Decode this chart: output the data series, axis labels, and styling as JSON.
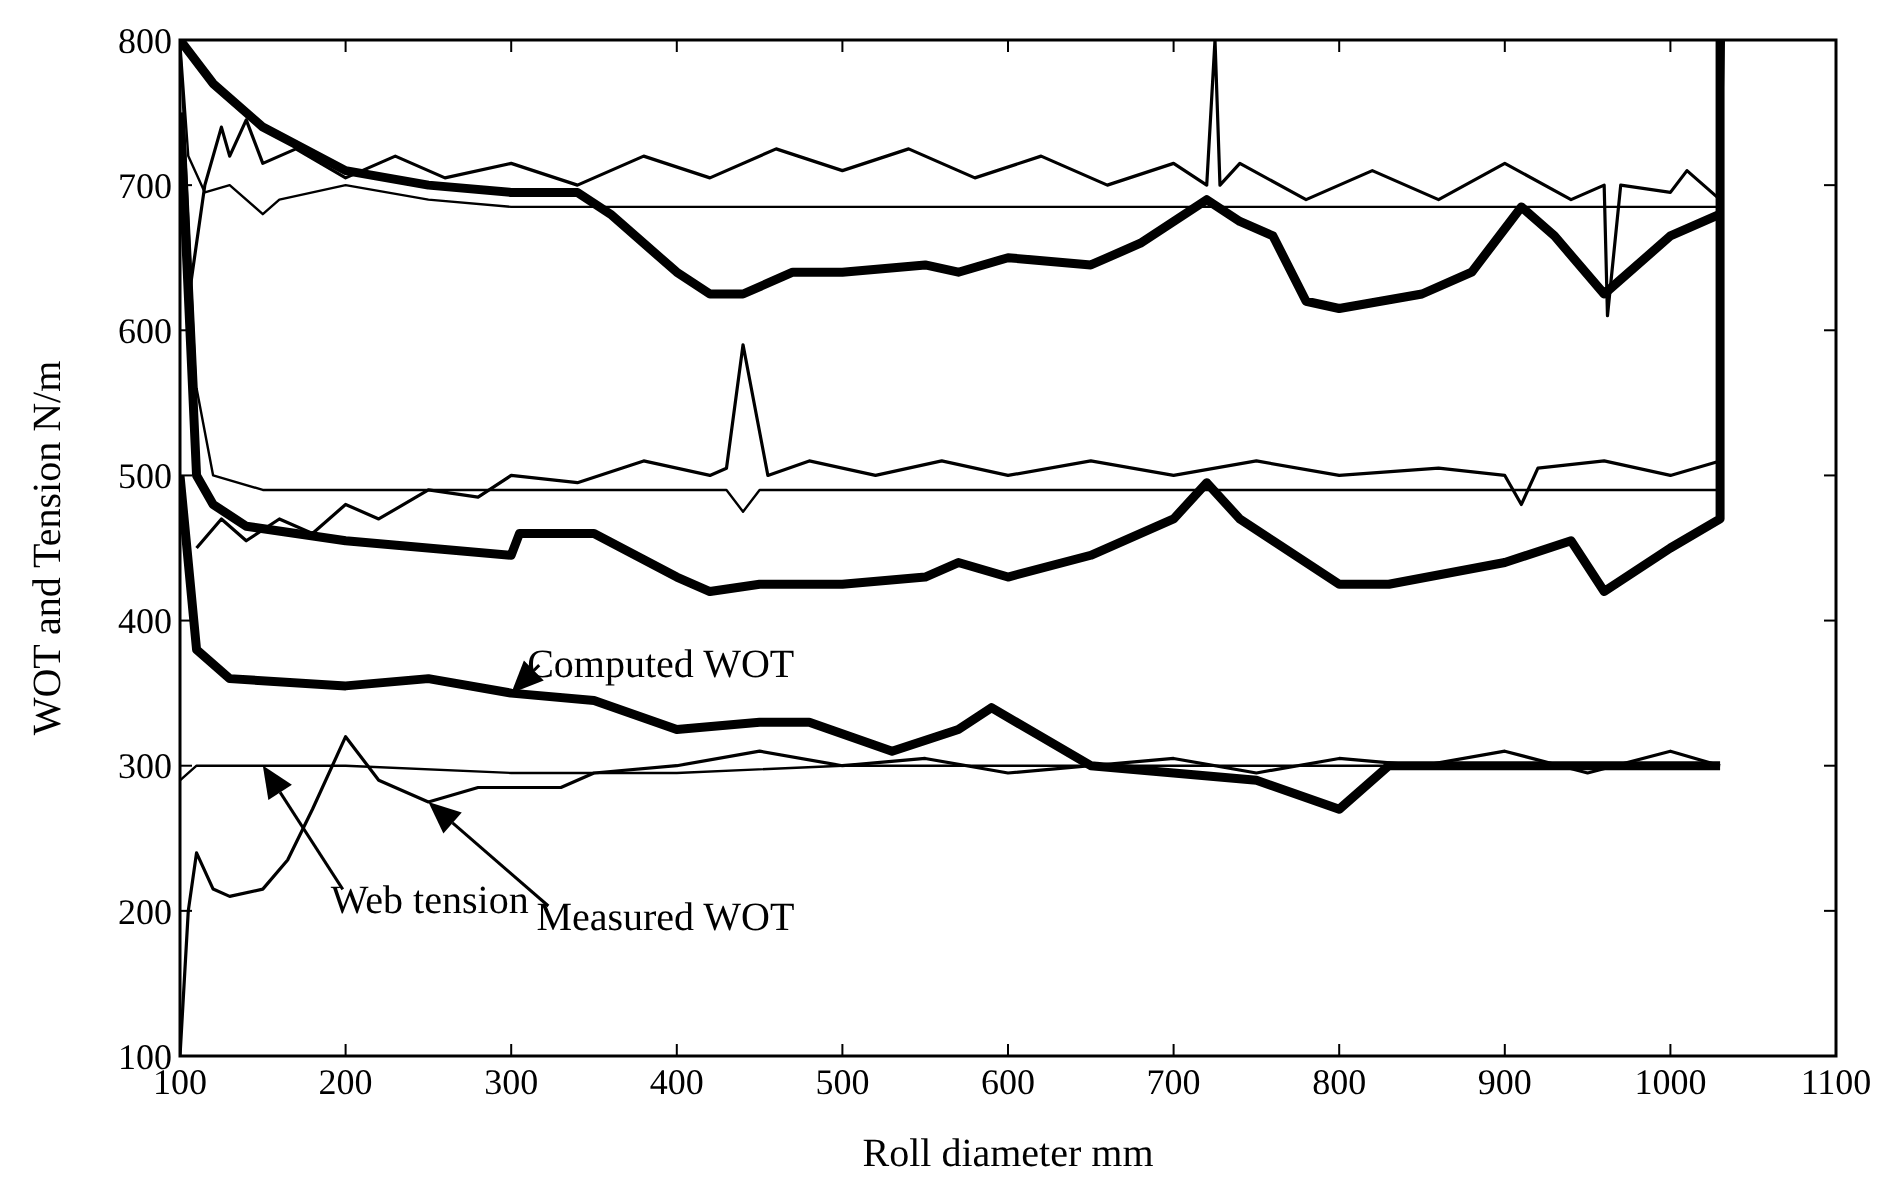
{
  "chart_data": {
    "type": "line",
    "xlabel": "Roll diameter mm",
    "ylabel": "WOT and Tension N/m",
    "xlim": [
      100,
      1100
    ],
    "ylim": [
      100,
      800
    ],
    "xticks": [
      100,
      200,
      300,
      400,
      500,
      600,
      700,
      800,
      900,
      1000,
      1100
    ],
    "yticks": [
      100,
      200,
      300,
      400,
      500,
      600,
      700,
      800
    ],
    "marker": "none",
    "line_style": "solid",
    "annotations": [
      {
        "text": "Computed WOT",
        "x": 300,
        "y": 350
      },
      "Measured WOT",
      "Web tension"
    ],
    "series": [
      {
        "color": "#000000",
        "x": [
          100,
          105,
          115,
          130,
          150,
          160,
          200,
          250,
          300,
          400,
          500,
          600,
          700,
          800,
          900,
          1000,
          1030,
          1030
        ],
        "values": [
          800,
          720,
          695,
          700,
          680,
          690,
          700,
          690,
          685,
          685,
          685,
          685,
          685,
          685,
          685,
          685,
          685,
          800
        ]
      },
      {
        "color": "#000000",
        "x": [
          105,
          115,
          125,
          130,
          140,
          150,
          170,
          200,
          230,
          260,
          300,
          340,
          380,
          420,
          460,
          500,
          540,
          580,
          620,
          660,
          700,
          720,
          725,
          728,
          740,
          780,
          820,
          860,
          900,
          940,
          960,
          962,
          970,
          1000,
          1010,
          1030,
          1032
        ],
        "values": [
          620,
          700,
          740,
          720,
          745,
          715,
          725,
          705,
          720,
          705,
          715,
          700,
          720,
          705,
          725,
          710,
          725,
          705,
          720,
          700,
          715,
          700,
          800,
          700,
          715,
          690,
          710,
          690,
          715,
          690,
          700,
          610,
          700,
          695,
          710,
          690,
          800
        ]
      },
      {
        "color": "#000000",
        "x": [
          100,
          120,
          150,
          200,
          250,
          300,
          340,
          360,
          400,
          420,
          440,
          470,
          500,
          550,
          570,
          600,
          650,
          680,
          720,
          740,
          760,
          780,
          800,
          850,
          880,
          910,
          930,
          960,
          1000,
          1030
        ],
        "values": [
          800,
          770,
          740,
          710,
          700,
          695,
          695,
          680,
          640,
          625,
          625,
          640,
          640,
          645,
          640,
          650,
          645,
          660,
          690,
          675,
          665,
          620,
          615,
          625,
          640,
          685,
          665,
          625,
          665,
          680
        ]
      },
      {
        "color": "#000000",
        "x": [
          100,
          110,
          120,
          150,
          200,
          300,
          400,
          430,
          440,
          450,
          500,
          600,
          700,
          800,
          900,
          1000,
          1030
        ],
        "values": [
          800,
          560,
          500,
          490,
          490,
          490,
          490,
          490,
          475,
          490,
          490,
          490,
          490,
          490,
          490,
          490,
          490
        ]
      },
      {
        "color": "#000000",
        "x": [
          110,
          125,
          140,
          160,
          180,
          200,
          220,
          250,
          280,
          300,
          340,
          380,
          420,
          430,
          440,
          455,
          480,
          520,
          560,
          600,
          650,
          700,
          750,
          800,
          860,
          900,
          910,
          920,
          960,
          1000,
          1030
        ],
        "values": [
          450,
          470,
          455,
          470,
          460,
          480,
          470,
          490,
          485,
          500,
          495,
          510,
          500,
          505,
          590,
          500,
          510,
          500,
          510,
          500,
          510,
          500,
          510,
          500,
          505,
          500,
          480,
          505,
          510,
          500,
          510
        ]
      },
      {
        "color": "#000000",
        "x": [
          100,
          110,
          120,
          140,
          200,
          300,
          305,
          350,
          400,
          420,
          450,
          500,
          550,
          570,
          600,
          650,
          700,
          720,
          740,
          760,
          800,
          830,
          900,
          940,
          960,
          1000,
          1030,
          1030
        ],
        "values": [
          750,
          500,
          480,
          465,
          455,
          445,
          460,
          460,
          430,
          420,
          425,
          425,
          430,
          440,
          430,
          445,
          470,
          495,
          470,
          455,
          425,
          425,
          440,
          455,
          420,
          450,
          470,
          800
        ]
      },
      {
        "color": "#000000",
        "x": [
          100,
          110,
          150,
          200,
          300,
          400,
          500,
          600,
          700,
          800,
          900,
          1000,
          1030
        ],
        "values": [
          290,
          300,
          300,
          300,
          295,
          295,
          300,
          300,
          300,
          300,
          300,
          300,
          300
        ]
      },
      {
        "color": "#000000",
        "x": [
          100,
          105,
          110,
          120,
          130,
          150,
          165,
          180,
          200,
          220,
          240,
          250,
          280,
          330,
          350,
          400,
          450,
          500,
          550,
          600,
          650,
          700,
          750,
          800,
          850,
          900,
          950,
          1000,
          1030
        ],
        "values": [
          100,
          200,
          240,
          215,
          210,
          215,
          235,
          270,
          320,
          290,
          280,
          275,
          285,
          285,
          295,
          300,
          310,
          300,
          305,
          295,
          300,
          305,
          295,
          305,
          300,
          310,
          295,
          310,
          300
        ]
      },
      {
        "color": "#000000",
        "x": [
          100,
          110,
          130,
          200,
          250,
          300,
          350,
          400,
          450,
          480,
          530,
          570,
          590,
          620,
          650,
          700,
          750,
          800,
          830,
          900,
          1000,
          1030
        ],
        "values": [
          500,
          380,
          360,
          355,
          360,
          350,
          345,
          325,
          330,
          330,
          310,
          325,
          340,
          320,
          300,
          295,
          290,
          270,
          300,
          300,
          300,
          300
        ]
      }
    ]
  }
}
